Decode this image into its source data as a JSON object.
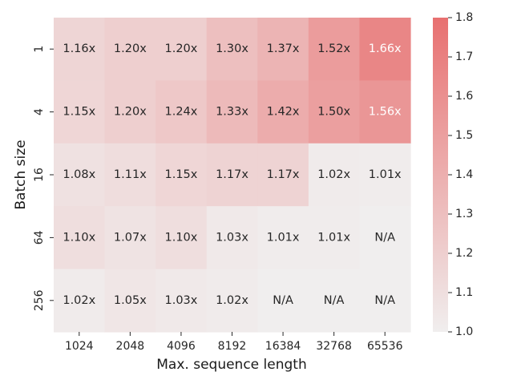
{
  "chart_data": {
    "type": "heatmap",
    "title": "",
    "xlabel": "Max. sequence length",
    "ylabel": "Batch size",
    "x_categories": [
      "1024",
      "2048",
      "4096",
      "8192",
      "16384",
      "32768",
      "65536"
    ],
    "y_categories": [
      "1",
      "4",
      "16",
      "64",
      "256"
    ],
    "values": [
      [
        1.16,
        1.2,
        1.2,
        1.3,
        1.37,
        1.52,
        1.66
      ],
      [
        1.15,
        1.2,
        1.24,
        1.33,
        1.42,
        1.5,
        1.56
      ],
      [
        1.08,
        1.11,
        1.15,
        1.17,
        1.17,
        1.02,
        1.01
      ],
      [
        1.1,
        1.07,
        1.1,
        1.03,
        1.01,
        1.01,
        null
      ],
      [
        1.02,
        1.05,
        1.03,
        1.02,
        null,
        null,
        null
      ]
    ],
    "cell_labels": [
      [
        "1.16x",
        "1.20x",
        "1.20x",
        "1.30x",
        "1.37x",
        "1.52x",
        "1.66x"
      ],
      [
        "1.15x",
        "1.20x",
        "1.24x",
        "1.33x",
        "1.42x",
        "1.50x",
        "1.56x"
      ],
      [
        "1.08x",
        "1.11x",
        "1.15x",
        "1.17x",
        "1.17x",
        "1.02x",
        "1.01x"
      ],
      [
        "1.10x",
        "1.07x",
        "1.10x",
        "1.03x",
        "1.01x",
        "1.01x",
        "N/A"
      ],
      [
        "1.02x",
        "1.05x",
        "1.03x",
        "1.02x",
        "N/A",
        "N/A",
        "N/A"
      ]
    ],
    "colorbar": {
      "vmin": 1.0,
      "vmax": 1.8,
      "ticks": [
        "1.0",
        "1.1",
        "1.2",
        "1.3",
        "1.4",
        "1.5",
        "1.6",
        "1.7",
        "1.8"
      ],
      "color_low": "#f0eeee",
      "color_high": "#e87070"
    },
    "grid": false,
    "legend": "colorbar-right"
  }
}
